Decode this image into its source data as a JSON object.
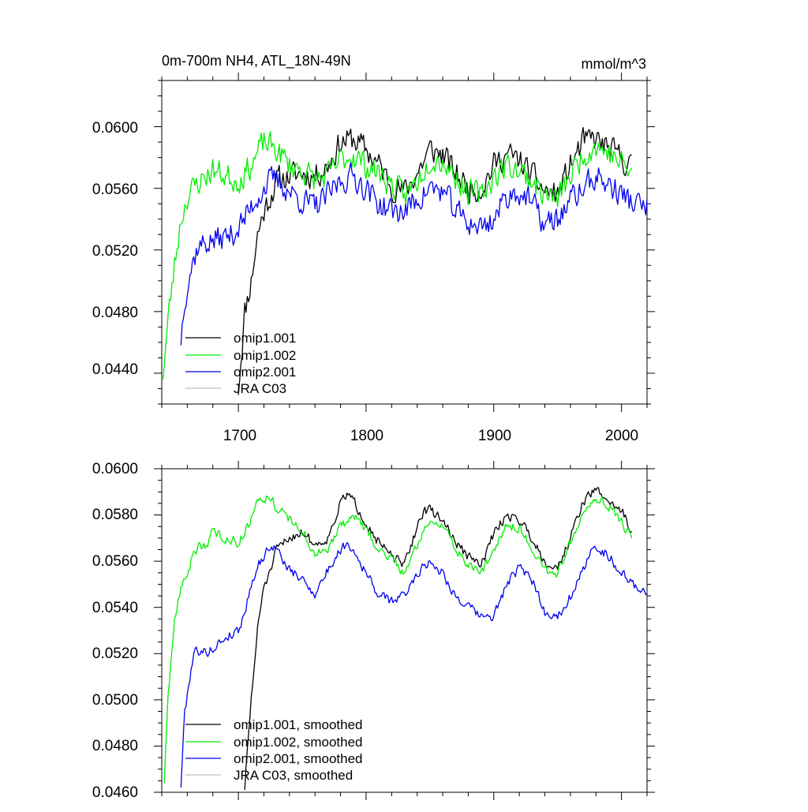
{
  "chart_data": [
    {
      "type": "line",
      "panel": "top",
      "title": "0m-700m NH4, ATL_18N-49N",
      "units": "mmol/m^3",
      "xlim": [
        1640,
        2020
      ],
      "ylim": [
        0.042,
        0.063
      ],
      "xticks": [
        "1700",
        "1800",
        "1900",
        "2000"
      ],
      "yticks": [
        "0.0440",
        "0.0480",
        "0.0520",
        "0.0560",
        "0.0600"
      ],
      "legend": [
        {
          "label": "omip1.001",
          "color": "#000000"
        },
        {
          "label": "omip1.002",
          "color": "#00ee00"
        },
        {
          "label": "omip2.001",
          "color": "#0000ee"
        },
        {
          "label": "JRA C03",
          "color": "#c0c0c0"
        }
      ],
      "series": [
        {
          "name": "omip1.001",
          "color": "#000000",
          "x": [
            1700,
            1705,
            1710,
            1715,
            1720,
            1730,
            1740,
            1750,
            1760,
            1770,
            1780,
            1790,
            1800,
            1810,
            1820,
            1830,
            1840,
            1850,
            1860,
            1870,
            1880,
            1890,
            1900,
            1910,
            1920,
            1930,
            1940,
            1950,
            1960,
            1970,
            1980,
            1990,
            2000,
            2008
          ],
          "y": [
            0.043,
            0.048,
            0.05,
            0.053,
            0.0545,
            0.0565,
            0.0568,
            0.057,
            0.0568,
            0.0575,
            0.059,
            0.0592,
            0.0585,
            0.0575,
            0.0562,
            0.0558,
            0.057,
            0.0585,
            0.0582,
            0.057,
            0.056,
            0.056,
            0.0575,
            0.0582,
            0.0578,
            0.0568,
            0.0558,
            0.0556,
            0.0575,
            0.059,
            0.0592,
            0.0585,
            0.058,
            0.0573
          ],
          "noise": 0.0012,
          "seed": 11
        },
        {
          "name": "omip1.002",
          "color": "#00ee00",
          "x": [
            1641,
            1645,
            1650,
            1655,
            1660,
            1670,
            1680,
            1690,
            1700,
            1710,
            1720,
            1730,
            1740,
            1750,
            1760,
            1770,
            1780,
            1790,
            1800,
            1810,
            1820,
            1830,
            1840,
            1850,
            1860,
            1870,
            1880,
            1890,
            1900,
            1910,
            1920,
            1930,
            1940,
            1950,
            1960,
            1970,
            1980,
            1990,
            2000,
            2008
          ],
          "y": [
            0.044,
            0.0475,
            0.051,
            0.054,
            0.0555,
            0.0565,
            0.0572,
            0.0568,
            0.0565,
            0.0575,
            0.059,
            0.0585,
            0.0575,
            0.0572,
            0.0565,
            0.0568,
            0.0578,
            0.0582,
            0.0575,
            0.057,
            0.0562,
            0.0555,
            0.0565,
            0.058,
            0.0578,
            0.0568,
            0.0558,
            0.0555,
            0.0568,
            0.0575,
            0.0572,
            0.0565,
            0.0556,
            0.0553,
            0.0568,
            0.0582,
            0.0588,
            0.0583,
            0.0576,
            0.057
          ],
          "noise": 0.0012,
          "seed": 23
        },
        {
          "name": "omip2.001",
          "color": "#0000ee",
          "x": [
            1655,
            1658,
            1662,
            1668,
            1675,
            1685,
            1695,
            1705,
            1715,
            1725,
            1730,
            1740,
            1750,
            1760,
            1770,
            1780,
            1790,
            1800,
            1810,
            1820,
            1830,
            1840,
            1850,
            1860,
            1870,
            1880,
            1890,
            1900,
            1910,
            1920,
            1930,
            1940,
            1950,
            1960,
            1970,
            1980,
            1990,
            2000,
            2010,
            2020
          ],
          "y": [
            0.0462,
            0.049,
            0.0505,
            0.0522,
            0.0525,
            0.0527,
            0.053,
            0.054,
            0.0555,
            0.0565,
            0.0565,
            0.0558,
            0.0552,
            0.0548,
            0.0555,
            0.0565,
            0.0568,
            0.056,
            0.055,
            0.0545,
            0.0545,
            0.0553,
            0.056,
            0.0558,
            0.0545,
            0.0538,
            0.0535,
            0.054,
            0.0555,
            0.0558,
            0.055,
            0.0536,
            0.054,
            0.0552,
            0.056,
            0.0568,
            0.0562,
            0.0556,
            0.055,
            0.0547
          ],
          "noise": 0.0012,
          "seed": 37
        }
      ]
    },
    {
      "type": "line",
      "panel": "bottom",
      "title": "",
      "xlim": [
        1640,
        2020
      ],
      "ylim": [
        0.046,
        0.06
      ],
      "yticks": [
        "0.0460",
        "0.0480",
        "0.0500",
        "0.0520",
        "0.0540",
        "0.0560",
        "0.0580",
        "0.0600"
      ],
      "legend": [
        {
          "label": "omip1.001, smoothed",
          "color": "#000000"
        },
        {
          "label": "omip1.002, smoothed",
          "color": "#00ee00"
        },
        {
          "label": "omip2.001, smoothed",
          "color": "#0000ee"
        },
        {
          "label": "JRA C03, smoothed",
          "color": "#c0c0c0"
        }
      ],
      "series": [
        {
          "name": "omip1.001, smoothed",
          "color": "#000000",
          "x": [
            1705,
            1710,
            1715,
            1720,
            1725,
            1730,
            1740,
            1750,
            1760,
            1770,
            1780,
            1785,
            1790,
            1800,
            1810,
            1820,
            1830,
            1840,
            1845,
            1850,
            1860,
            1870,
            1880,
            1890,
            1900,
            1910,
            1920,
            1930,
            1940,
            1950,
            1960,
            1970,
            1980,
            1990,
            2000,
            2008
          ],
          "y": [
            0.0462,
            0.05,
            0.053,
            0.055,
            0.0555,
            0.0565,
            0.057,
            0.0573,
            0.0567,
            0.057,
            0.0585,
            0.0589,
            0.0586,
            0.0577,
            0.0568,
            0.0562,
            0.0558,
            0.0575,
            0.0582,
            0.0582,
            0.0578,
            0.0568,
            0.0562,
            0.0558,
            0.0572,
            0.058,
            0.0578,
            0.057,
            0.056,
            0.0557,
            0.057,
            0.0586,
            0.0591,
            0.0586,
            0.0582,
            0.0573
          ],
          "noise": 0.0003,
          "seed": 51
        },
        {
          "name": "omip1.002, smoothed",
          "color": "#00ee00",
          "x": [
            1642,
            1645,
            1650,
            1655,
            1660,
            1665,
            1670,
            1675,
            1680,
            1690,
            1700,
            1710,
            1715,
            1720,
            1725,
            1730,
            1740,
            1750,
            1760,
            1770,
            1780,
            1790,
            1800,
            1810,
            1820,
            1830,
            1840,
            1850,
            1860,
            1870,
            1880,
            1890,
            1900,
            1910,
            1920,
            1930,
            1940,
            1950,
            1960,
            1970,
            1980,
            1990,
            2000,
            2008
          ],
          "y": [
            0.0465,
            0.05,
            0.0535,
            0.0548,
            0.0555,
            0.0563,
            0.0567,
            0.0567,
            0.0573,
            0.057,
            0.0568,
            0.0578,
            0.0588,
            0.0587,
            0.0588,
            0.0583,
            0.0578,
            0.0573,
            0.0563,
            0.0565,
            0.0575,
            0.058,
            0.0573,
            0.0565,
            0.0561,
            0.0555,
            0.0567,
            0.0578,
            0.0576,
            0.0565,
            0.0559,
            0.0554,
            0.0566,
            0.0576,
            0.0574,
            0.0566,
            0.0556,
            0.0555,
            0.0568,
            0.0583,
            0.0588,
            0.0584,
            0.0577,
            0.057
          ],
          "noise": 0.0003,
          "seed": 63
        },
        {
          "name": "omip2.001, smoothed",
          "color": "#0000ee",
          "x": [
            1655,
            1658,
            1662,
            1665,
            1668,
            1672,
            1680,
            1690,
            1700,
            1705,
            1710,
            1715,
            1720,
            1725,
            1730,
            1740,
            1750,
            1760,
            1770,
            1780,
            1785,
            1790,
            1800,
            1810,
            1820,
            1830,
            1840,
            1850,
            1860,
            1870,
            1880,
            1890,
            1900,
            1910,
            1920,
            1930,
            1940,
            1950,
            1960,
            1970,
            1975,
            1980,
            1990,
            2000,
            2010,
            2020
          ],
          "y": [
            0.0463,
            0.0495,
            0.051,
            0.052,
            0.0522,
            0.052,
            0.0522,
            0.0527,
            0.053,
            0.0538,
            0.055,
            0.0558,
            0.0562,
            0.0567,
            0.0565,
            0.0556,
            0.0552,
            0.0546,
            0.0556,
            0.0565,
            0.0568,
            0.0565,
            0.0555,
            0.0545,
            0.0543,
            0.0545,
            0.0555,
            0.056,
            0.0555,
            0.0545,
            0.054,
            0.0536,
            0.0536,
            0.055,
            0.0557,
            0.0552,
            0.0538,
            0.0536,
            0.0545,
            0.0556,
            0.0562,
            0.0567,
            0.0562,
            0.0555,
            0.0549,
            0.0547
          ],
          "noise": 0.0003,
          "seed": 79
        }
      ]
    }
  ]
}
